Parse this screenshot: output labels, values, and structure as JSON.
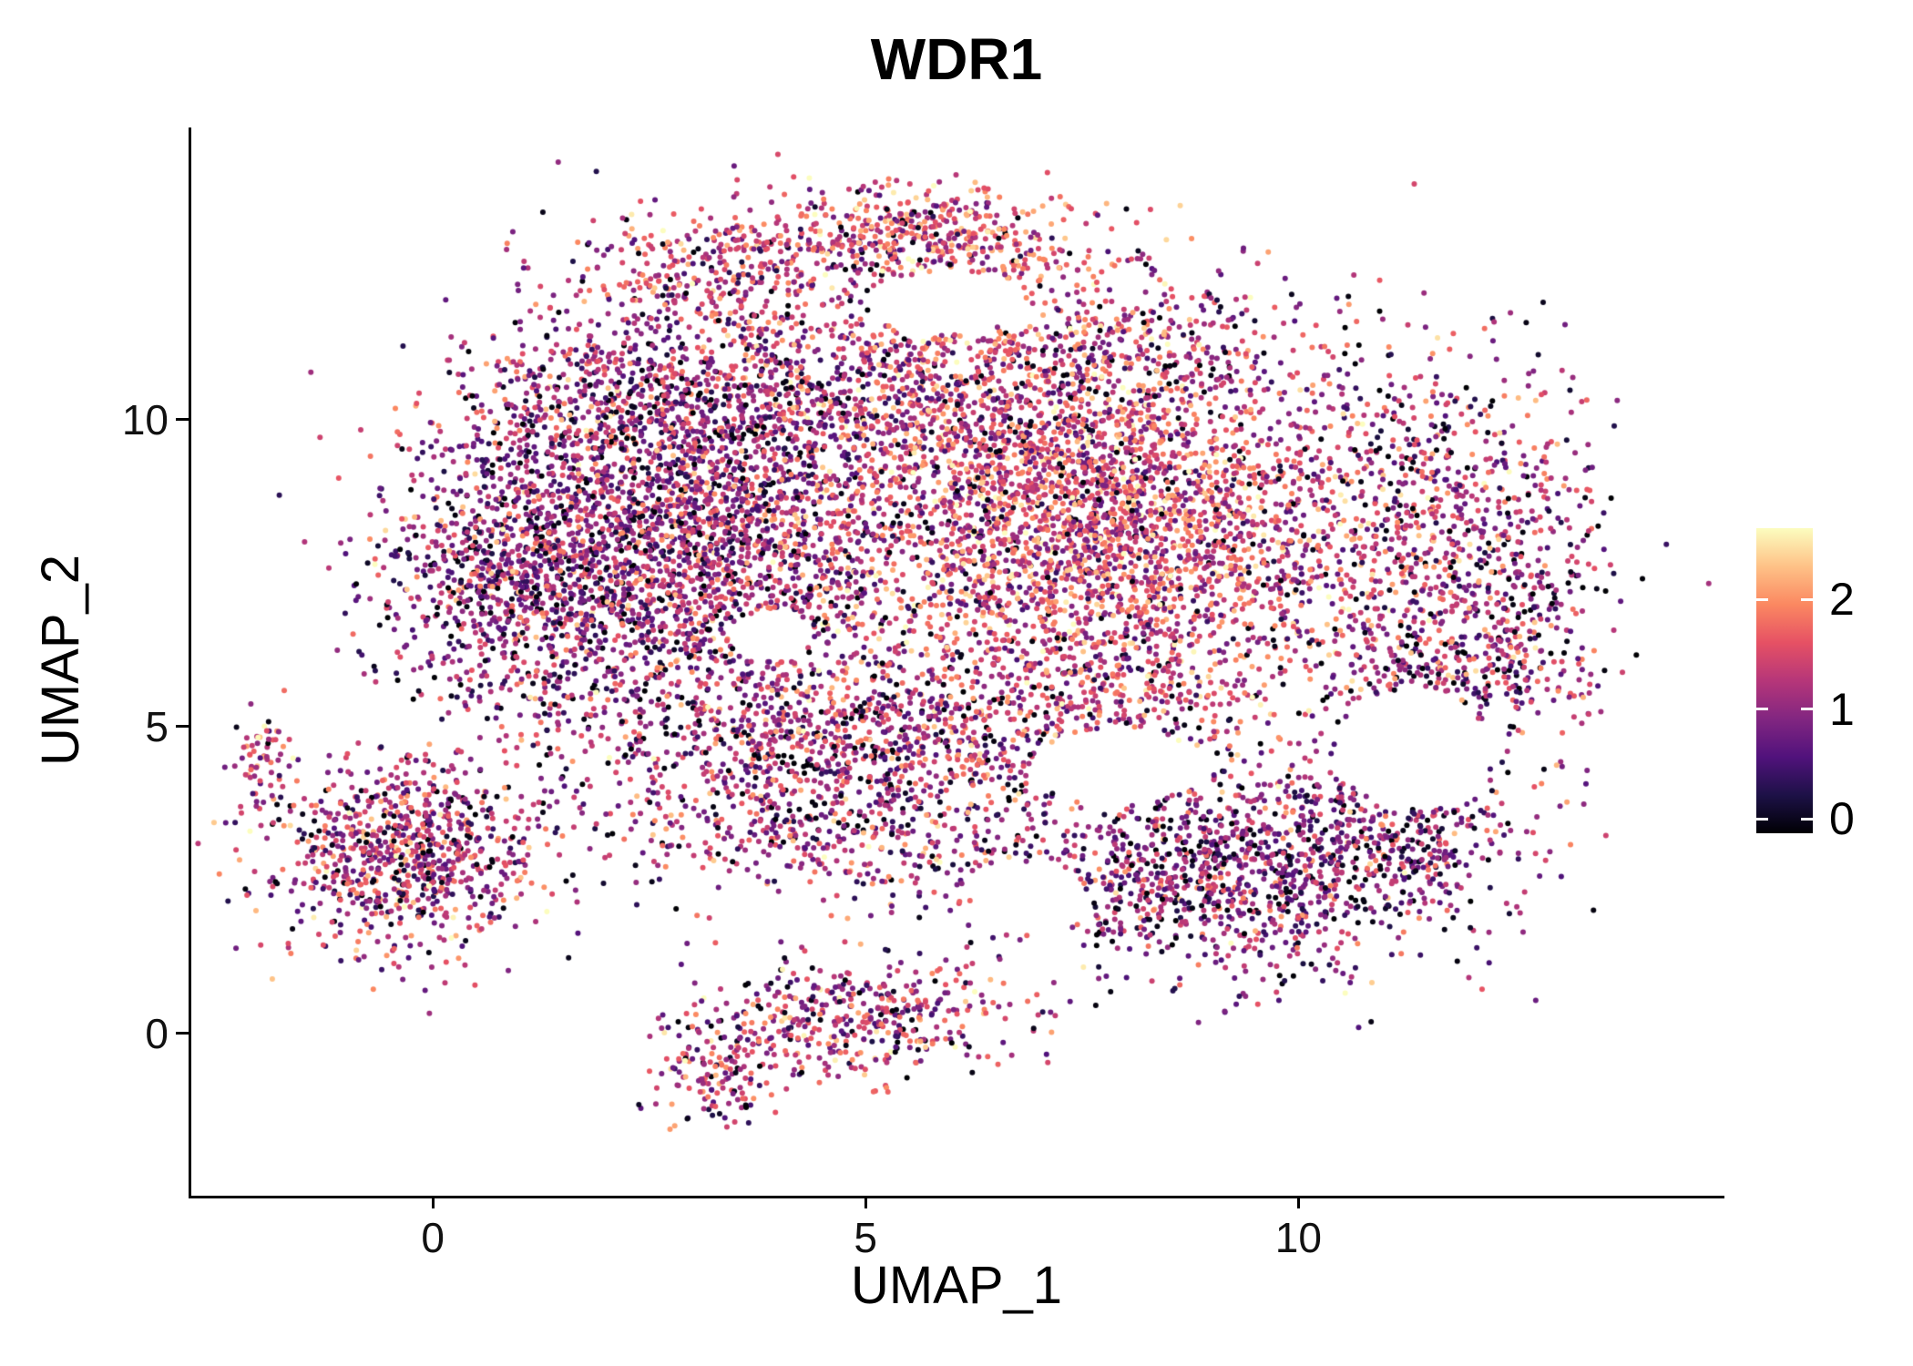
{
  "title": "WDR1",
  "axes": {
    "x": {
      "label": "UMAP_1",
      "ticks": [
        "0",
        "5",
        "10"
      ],
      "tick_values": [
        0,
        5,
        10
      ],
      "range": [
        -2.79,
        14.89
      ]
    },
    "y": {
      "label": "UMAP_2",
      "ticks": [
        "0",
        "5",
        "10"
      ],
      "tick_values": [
        0,
        5,
        10
      ],
      "range": [
        -2.6,
        14.76
      ]
    }
  },
  "legend": {
    "tick_labels": [
      "0",
      "1",
      "2"
    ],
    "tick_values": [
      0,
      1,
      2
    ],
    "bar_range": [
      -0.13,
      2.65
    ]
  },
  "colors": {
    "background": "#ffffff",
    "axis": "#000000",
    "text": "#000000",
    "magma_stops": [
      "#000004",
      "#1d1147",
      "#51127c",
      "#822681",
      "#b63679",
      "#e65164",
      "#fb8861",
      "#fec287",
      "#fcfdbf"
    ]
  },
  "chart_data": {
    "type": "scatter",
    "title": "WDR1",
    "xlabel": "UMAP_1",
    "ylabel": "UMAP_2",
    "xlim": [
      -2.79,
      14.89
    ],
    "ylim": [
      -2.6,
      14.76
    ],
    "grid": false,
    "legend_position": "right",
    "color_scale": {
      "name": "magma",
      "domain": [
        0,
        2.6
      ],
      "legend_ticks": [
        0,
        1,
        2
      ]
    },
    "seed": 42,
    "point_radius_px": 3,
    "clusters": [
      {
        "name": "main-left-dense",
        "cx": 1.3,
        "cy": 7.6,
        "sx": 0.95,
        "sy": 1.35,
        "n": 1600,
        "value_mean": 1.05,
        "value_sd": 0.55,
        "p_zero": 0.09
      },
      {
        "name": "main-mid-left",
        "cx": 3.4,
        "cy": 7.9,
        "sx": 1.0,
        "sy": 1.6,
        "n": 1800,
        "value_mean": 1.15,
        "value_sd": 0.55,
        "p_zero": 0.08
      },
      {
        "name": "main-center-right",
        "cx": 7.6,
        "cy": 8.3,
        "sx": 1.55,
        "sy": 1.45,
        "n": 3200,
        "value_mean": 1.5,
        "value_sd": 0.55,
        "p_zero": 0.05
      },
      {
        "name": "right-lobe",
        "cx": 11.5,
        "cy": 8.4,
        "sx": 0.95,
        "sy": 1.35,
        "n": 750,
        "value_mean": 1.2,
        "value_sd": 0.6,
        "p_zero": 0.08
      },
      {
        "name": "top-arc-left",
        "cx": 3.1,
        "cy": 12.4,
        "sx": 0.8,
        "sy": 0.5,
        "n": 300,
        "value_mean": 1.4,
        "value_sd": 0.55,
        "p_zero": 0.05
      },
      {
        "name": "top-arc",
        "cx": 5.4,
        "cy": 13.0,
        "sx": 1.0,
        "sy": 0.4,
        "n": 520,
        "value_mean": 1.5,
        "value_sd": 0.55,
        "p_zero": 0.04
      },
      {
        "name": "upper-left",
        "cx": 2.3,
        "cy": 10.4,
        "sx": 1.0,
        "sy": 0.75,
        "n": 550,
        "value_mean": 1.1,
        "value_sd": 0.55,
        "p_zero": 0.08
      },
      {
        "name": "upper-center",
        "cx": 5.2,
        "cy": 10.4,
        "sx": 1.2,
        "sy": 0.9,
        "n": 800,
        "value_mean": 1.25,
        "value_sd": 0.55,
        "p_zero": 0.07
      },
      {
        "name": "upper-right-sparse",
        "cx": 7.9,
        "cy": 11.2,
        "sx": 1.5,
        "sy": 0.8,
        "n": 430,
        "value_mean": 1.3,
        "value_sd": 0.6,
        "p_zero": 0.06
      },
      {
        "name": "below-band",
        "cx": 4.9,
        "cy": 4.7,
        "sx": 1.5,
        "sy": 0.7,
        "n": 800,
        "value_mean": 1.2,
        "value_sd": 0.6,
        "p_zero": 0.08
      },
      {
        "name": "below-right-sparse",
        "cx": 7.6,
        "cy": 5.4,
        "sx": 1.3,
        "sy": 0.6,
        "n": 320,
        "value_mean": 1.25,
        "value_sd": 0.6,
        "p_zero": 0.08
      },
      {
        "name": "bottom-connector",
        "cx": 4.6,
        "cy": 3.3,
        "sx": 1.2,
        "sy": 0.6,
        "n": 400,
        "value_mean": 1.2,
        "value_sd": 0.6,
        "p_zero": 0.08
      },
      {
        "name": "right-bottom",
        "cx": 9.2,
        "cy": 2.7,
        "sx": 1.3,
        "sy": 0.85,
        "n": 1250,
        "value_mean": 1.0,
        "value_sd": 0.55,
        "p_zero": 0.08
      },
      {
        "name": "right-bottom-ext",
        "cx": 11.2,
        "cy": 3.3,
        "sx": 0.7,
        "sy": 0.6,
        "n": 280,
        "value_mean": 1.0,
        "value_sd": 0.55,
        "p_zero": 0.08
      },
      {
        "name": "hole-ring-top",
        "cx": 11.6,
        "cy": 6.1,
        "sx": 0.75,
        "sy": 0.55,
        "n": 240,
        "value_mean": 1.15,
        "value_sd": 0.6,
        "p_zero": 0.08
      },
      {
        "name": "right-edge",
        "cx": 12.7,
        "cy": 6.8,
        "sx": 0.5,
        "sy": 1.3,
        "n": 220,
        "value_mean": 1.1,
        "value_sd": 0.6,
        "p_zero": 0.1
      },
      {
        "name": "left-island",
        "cx": -0.3,
        "cy": 2.9,
        "sx": 0.78,
        "sy": 0.78,
        "n": 880,
        "value_mean": 1.25,
        "value_sd": 0.6,
        "p_zero": 0.07
      },
      {
        "name": "left-island-tail",
        "cx": -1.95,
        "cy": 4.4,
        "sx": 0.18,
        "sy": 0.45,
        "n": 60,
        "value_mean": 1.35,
        "value_sd": 0.55,
        "p_zero": 0.05
      },
      {
        "name": "bottom-island",
        "cx": 5.0,
        "cy": 0.3,
        "sx": 0.85,
        "sy": 0.5,
        "n": 400,
        "value_mean": 1.25,
        "value_sd": 0.6,
        "p_zero": 0.07
      },
      {
        "name": "bottom-island-tail",
        "cx": 3.3,
        "cy": -0.55,
        "sx": 0.38,
        "sy": 0.5,
        "n": 170,
        "value_mean": 1.3,
        "value_sd": 0.6,
        "p_zero": 0.06
      }
    ],
    "holes": [
      {
        "cx": 11.35,
        "cy": 4.6,
        "rx": 0.85,
        "ry": 0.95
      },
      {
        "cx": 7.9,
        "cy": 4.35,
        "rx": 1.0,
        "ry": 0.6
      },
      {
        "cx": 5.9,
        "cy": 11.9,
        "rx": 0.9,
        "ry": 0.5
      },
      {
        "cx": 3.9,
        "cy": 6.5,
        "rx": 0.5,
        "ry": 0.38
      },
      {
        "cx": 6.9,
        "cy": 2.2,
        "rx": 0.65,
        "ry": 0.6
      }
    ]
  }
}
